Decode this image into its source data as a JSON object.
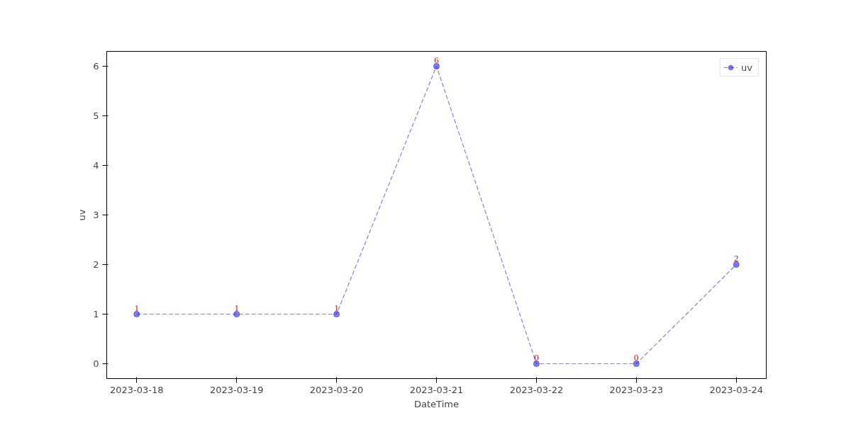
{
  "chart_data": {
    "type": "line",
    "xlabel": "DateTime",
    "ylabel": "uv",
    "x": [
      "2023-03-18",
      "2023-03-19",
      "2023-03-20",
      "2023-03-21",
      "2023-03-22",
      "2023-03-23",
      "2023-03-24"
    ],
    "series": [
      {
        "name": "uv",
        "color": "#0000ff",
        "values": [
          1,
          1,
          1,
          6,
          0,
          0,
          2
        ]
      }
    ],
    "xlim": [
      "2023-03-17T16:48",
      "2023-03-24T07:12"
    ],
    "xticks": [
      "2023-03-18",
      "2023-03-19",
      "2023-03-20",
      "2023-03-21",
      "2023-03-22",
      "2023-03-23",
      "2023-03-24"
    ],
    "ylim": [
      -0.3,
      6.3
    ],
    "yticks": [
      0,
      1,
      2,
      3,
      4,
      5,
      6
    ],
    "marker": "circle",
    "line_style": "dashed",
    "legend": "top right",
    "data_labels": true,
    "grid": false
  }
}
